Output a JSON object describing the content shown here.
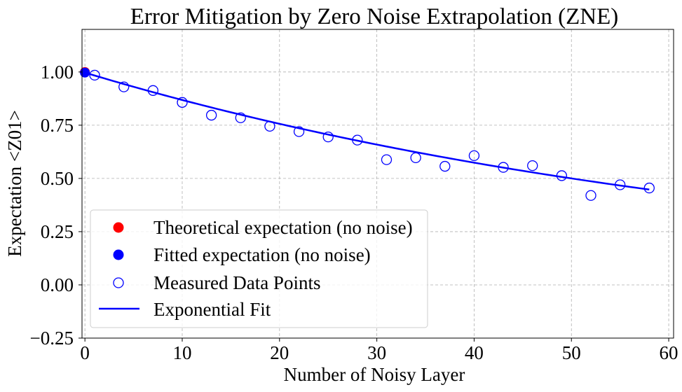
{
  "chart_data": {
    "type": "scatter",
    "title": "Error Mitigation by Zero Noise Extrapolation (ZNE)",
    "xlabel": "Number of Noisy Layer",
    "ylabel": "Expectation <Z01>",
    "xlim": [
      -0.3,
      60.5
    ],
    "ylim": [
      -0.25,
      1.2
    ],
    "x_ticks": [
      0,
      10,
      20,
      30,
      40,
      50,
      60
    ],
    "y_ticks": [
      -0.25,
      0.0,
      0.25,
      0.5,
      0.75,
      1.0
    ],
    "x_tick_labels": [
      "0",
      "10",
      "20",
      "30",
      "40",
      "50",
      "60"
    ],
    "y_tick_labels": [
      "−0.25",
      "0.00",
      "0.25",
      "0.50",
      "0.75",
      "1.00"
    ],
    "grid": true,
    "legend_position": "lower-left",
    "series": [
      {
        "name": "Theoretical expectation (no noise)",
        "kind": "marker-filled",
        "color": "#ff0000",
        "x": [
          0
        ],
        "y": [
          1.0
        ]
      },
      {
        "name": "Fitted expectation (no noise)",
        "kind": "marker-filled",
        "color": "#0000ff",
        "x": [
          0
        ],
        "y": [
          0.997
        ]
      },
      {
        "name": "Measured Data Points",
        "kind": "marker-open",
        "color": "#0000ff",
        "x": [
          1,
          4,
          7,
          10,
          13,
          16,
          19,
          22,
          25,
          28,
          31,
          34,
          37,
          40,
          43,
          46,
          49,
          52,
          55,
          58
        ],
        "y": [
          0.985,
          0.93,
          0.913,
          0.857,
          0.797,
          0.785,
          0.745,
          0.72,
          0.695,
          0.68,
          0.588,
          0.597,
          0.557,
          0.607,
          0.552,
          0.56,
          0.513,
          0.42,
          0.47,
          0.455
        ]
      },
      {
        "name": "Exponential Fit",
        "kind": "line",
        "color": "#0000ff",
        "model": "a*exp(-b*x)",
        "a": 0.997,
        "b": 0.0138,
        "x_range": [
          0,
          58
        ]
      }
    ]
  }
}
